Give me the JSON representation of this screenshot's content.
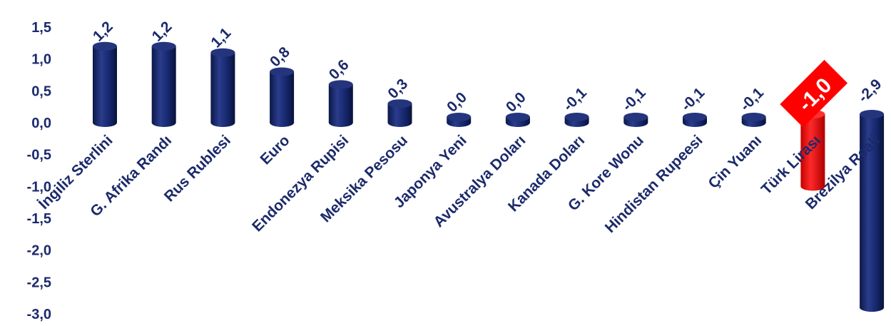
{
  "chart_data": {
    "type": "bar",
    "title": "",
    "xlabel": "",
    "ylabel": "",
    "ylim": [
      -3.0,
      1.5
    ],
    "yticks": [
      "1,5",
      "1,0",
      "0,5",
      "0,0",
      "-0,5",
      "-1,0",
      "-1,5",
      "-2,0",
      "-2,5",
      "-3,0"
    ],
    "ytick_values": [
      1.5,
      1.0,
      0.5,
      0.0,
      -0.5,
      -1.0,
      -1.5,
      -2.0,
      -2.5,
      -3.0
    ],
    "categories": [
      "İngiliz Sterlini",
      "G. Afrika Randı",
      "Rus Rublesi",
      "Euro",
      "Endonezya Rupisi",
      "Meksika Pesosu",
      "Japonya Yeni",
      "Avustralya Doları",
      "Kanada Doları",
      "G. Kore Wonu",
      "Hindistan Rupeesi",
      "Çin Yuanı",
      "Türk Lirası",
      "Brezilya Reali"
    ],
    "values": [
      1.2,
      1.2,
      1.1,
      0.8,
      0.6,
      0.3,
      0.0,
      0.0,
      -0.1,
      -0.1,
      -0.1,
      -0.1,
      -1.0,
      -2.9
    ],
    "value_labels": [
      "1,2",
      "1,2",
      "1,1",
      "0,8",
      "0,6",
      "0,3",
      "0,0",
      "0,0",
      "-0,1",
      "-0,1",
      "-0,1",
      "-0,1",
      "-1,0",
      "-2,9"
    ],
    "highlight_index": 12,
    "bar_color": "#15266b",
    "highlight_color": "#ff0000",
    "grid": false,
    "legend": "none"
  }
}
